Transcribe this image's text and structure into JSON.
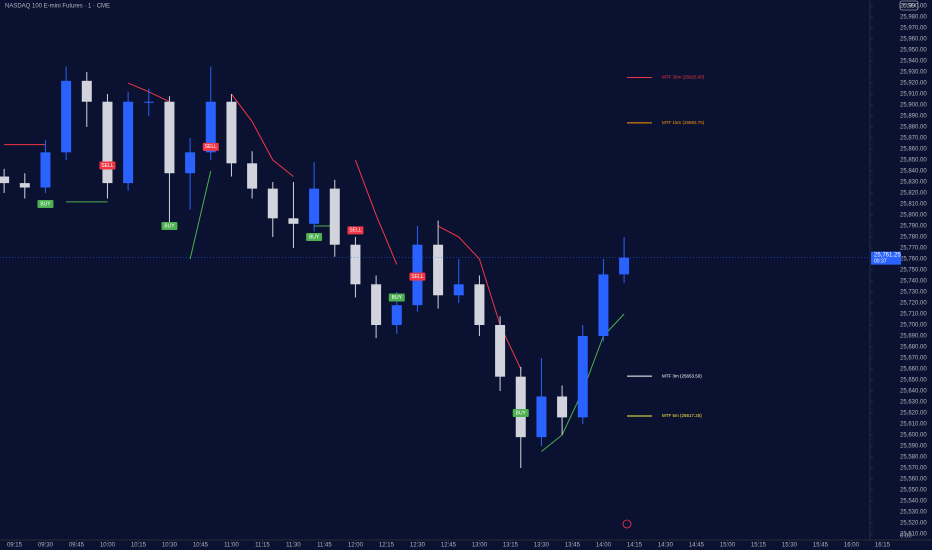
{
  "chart_data": {
    "type": "candlestick",
    "title": "NASDAQ 100 E-mini Futures · 1 · CME",
    "currency": "USD",
    "axis_footer": "0.00",
    "up_color": "#2962ff",
    "down_color": "#d1d4dc",
    "x": [
      "09:10",
      "09:20",
      "09:30",
      "09:40",
      "09:50",
      "10:00",
      "10:10",
      "10:20",
      "10:30",
      "10:40",
      "10:50",
      "11:00",
      "11:10",
      "11:20",
      "11:30",
      "11:40",
      "11:50",
      "12:00",
      "12:10",
      "12:20",
      "12:30",
      "12:40",
      "12:50",
      "13:00",
      "13:10",
      "13:20",
      "13:30",
      "13:40",
      "13:50",
      "14:00",
      "14:10"
    ],
    "open": [
      25835,
      25829,
      25825,
      25857,
      25922,
      25903,
      25829,
      25903,
      25903,
      25838,
      25857,
      25903,
      25847,
      25824,
      25797,
      25792,
      25824,
      25773,
      25737,
      25700,
      25718,
      25773,
      25727,
      25737,
      25700,
      25653,
      25598,
      25635,
      25616,
      25690,
      25746
    ],
    "high": [
      25842,
      25838,
      25868,
      25935,
      25930,
      25910,
      25912,
      25915,
      25908,
      25870,
      25935,
      25910,
      25858,
      25830,
      25830,
      25848,
      25832,
      25780,
      25745,
      25730,
      25790,
      25795,
      25760,
      25745,
      25708,
      25662,
      25670,
      25645,
      25700,
      25760,
      25780
    ],
    "low": [
      25820,
      25815,
      25820,
      25850,
      25880,
      25815,
      25822,
      25890,
      25790,
      25805,
      25850,
      25835,
      25815,
      25780,
      25770,
      25785,
      25762,
      25725,
      25688,
      25692,
      25712,
      25715,
      25720,
      25690,
      25640,
      25570,
      25590,
      25600,
      25610,
      25685,
      25738
    ],
    "close": [
      25829,
      25825,
      25857,
      25922,
      25903,
      25829,
      25903,
      25903,
      25838,
      25857,
      25903,
      25847,
      25824,
      25797,
      25792,
      25824,
      25773,
      25737,
      25700,
      25718,
      25773,
      25727,
      25737,
      25700,
      25653,
      25598,
      25635,
      25616,
      25690,
      25746,
      25761.25
    ],
    "lines": [
      {
        "color": "#f23645",
        "values": [
          25864,
          25864,
          25864,
          null,
          null,
          null,
          25920,
          25912,
          25903,
          null,
          null,
          25910,
          25885,
          25850,
          25835,
          null,
          null,
          25850,
          25800,
          25755,
          null,
          25790,
          25780,
          25760,
          25700,
          25660,
          null,
          null,
          null,
          null,
          null
        ]
      },
      {
        "color": "#4caf50",
        "values": [
          null,
          null,
          null,
          25812,
          25812,
          25812,
          null,
          null,
          null,
          25760,
          25840,
          null,
          null,
          null,
          null,
          25790,
          25790,
          null,
          null,
          null,
          25730,
          null,
          null,
          null,
          null,
          null,
          25585,
          25600,
          25640,
          25690,
          25710
        ]
      }
    ],
    "markers": [
      {
        "label": "BUY",
        "time": "09:30",
        "price": 25810,
        "color": "#4caf50"
      },
      {
        "label": "SELL",
        "time": "10:00",
        "price": 25845,
        "color": "#f23645"
      },
      {
        "label": "BUY",
        "time": "10:30",
        "price": 25790,
        "color": "#4caf50"
      },
      {
        "label": "SELL",
        "time": "10:50",
        "price": 25862,
        "color": "#f23645"
      },
      {
        "label": "BUY",
        "time": "11:40",
        "price": 25780,
        "color": "#4caf50"
      },
      {
        "label": "SELL",
        "time": "12:00",
        "price": 25786,
        "color": "#f23645"
      },
      {
        "label": "BUY",
        "time": "12:20",
        "price": 25725,
        "color": "#4caf50"
      },
      {
        "label": "SELL",
        "time": "12:30",
        "price": 25744,
        "color": "#f23645"
      },
      {
        "label": "BUY",
        "time": "13:20",
        "price": 25620,
        "color": "#4caf50"
      }
    ],
    "levels": [
      {
        "label": "MTF 30m (25925.00)",
        "value": 25925,
        "color": "#f23645"
      },
      {
        "label": "MTF 15m (25883.75)",
        "value": 25883.75,
        "color": "#ff9800"
      },
      {
        "label": "MTF 3m (25653.50)",
        "value": 25653.5,
        "color": "#ffffff"
      },
      {
        "label": "MTF 5m (25617.25)",
        "value": 25617.25,
        "color": "#ffeb3b"
      }
    ],
    "last_price": {
      "value": 25761.25,
      "label": "25,761.25",
      "countdown": "00:37"
    },
    "xlim": [
      "09:08",
      "16:09"
    ],
    "xticks": [
      "09:15",
      "09:30",
      "09:45",
      "10:00",
      "10:15",
      "10:30",
      "10:45",
      "11:00",
      "11:15",
      "11:30",
      "11:45",
      "12:00",
      "12:15",
      "12:30",
      "12:45",
      "13:00",
      "13:15",
      "13:30",
      "13:45",
      "14:00",
      "14:15",
      "14:30",
      "14:45",
      "15:00",
      "15:15",
      "15:30",
      "15:45",
      "16:00",
      "16:15"
    ],
    "ylim": [
      25504.5,
      25995.5
    ],
    "yticks": [
      {
        "value": 25510,
        "label": "25,510.00"
      },
      {
        "value": 25520,
        "label": "25,520.00"
      },
      {
        "value": 25530,
        "label": "25,530.00"
      },
      {
        "value": 25540,
        "label": "25,540.00"
      },
      {
        "value": 25550,
        "label": "25,550.00"
      },
      {
        "value": 25560,
        "label": "25,560.00"
      },
      {
        "value": 25570,
        "label": "25,570.00"
      },
      {
        "value": 25580,
        "label": "25,580.00"
      },
      {
        "value": 25590,
        "label": "25,590.00"
      },
      {
        "value": 25600,
        "label": "25,600.00"
      },
      {
        "value": 25610,
        "label": "25,610.00"
      },
      {
        "value": 25620,
        "label": "25,620.00"
      },
      {
        "value": 25630,
        "label": "25,630.00"
      },
      {
        "value": 25640,
        "label": "25,640.00"
      },
      {
        "value": 25650,
        "label": "25,650.00"
      },
      {
        "value": 25660,
        "label": "25,660.00"
      },
      {
        "value": 25670,
        "label": "25,670.00"
      },
      {
        "value": 25680,
        "label": "25,680.00"
      },
      {
        "value": 25690,
        "label": "25,690.00"
      },
      {
        "value": 25700,
        "label": "25,700.00"
      },
      {
        "value": 25710,
        "label": "25,710.00"
      },
      {
        "value": 25720,
        "label": "25,720.00"
      },
      {
        "value": 25730,
        "label": "25,730.00"
      },
      {
        "value": 25740,
        "label": "25,740.00"
      },
      {
        "value": 25750,
        "label": "25,750.00"
      },
      {
        "value": 25760,
        "label": "25,760.00"
      },
      {
        "value": 25770,
        "label": "25,770.00"
      },
      {
        "value": 25780,
        "label": "25,780.00"
      },
      {
        "value": 25790,
        "label": "25,790.00"
      },
      {
        "value": 25800,
        "label": "25,800.00"
      },
      {
        "value": 25810,
        "label": "25,810.00"
      },
      {
        "value": 25820,
        "label": "25,820.00"
      },
      {
        "value": 25830,
        "label": "25,830.00"
      },
      {
        "value": 25840,
        "label": "25,840.00"
      },
      {
        "value": 25850,
        "label": "25,850.00"
      },
      {
        "value": 25860,
        "label": "25,860.00"
      },
      {
        "value": 25870,
        "label": "25,870.00"
      },
      {
        "value": 25880,
        "label": "25,880.00"
      },
      {
        "value": 25890,
        "label": "25,890.00"
      },
      {
        "value": 25900,
        "label": "25,900.00"
      },
      {
        "value": 25910,
        "label": "25,910.00"
      },
      {
        "value": 25920,
        "label": "25,920.00"
      },
      {
        "value": 25930,
        "label": "25,930.00"
      },
      {
        "value": 25940,
        "label": "25,940.00"
      },
      {
        "value": 25950,
        "label": "25,950.00"
      },
      {
        "value": 25960,
        "label": "25,960.00"
      },
      {
        "value": 25970,
        "label": "25,970.00"
      },
      {
        "value": 25980,
        "label": "25,980.00"
      },
      {
        "value": 25990,
        "label": "25,990.00"
      }
    ]
  }
}
